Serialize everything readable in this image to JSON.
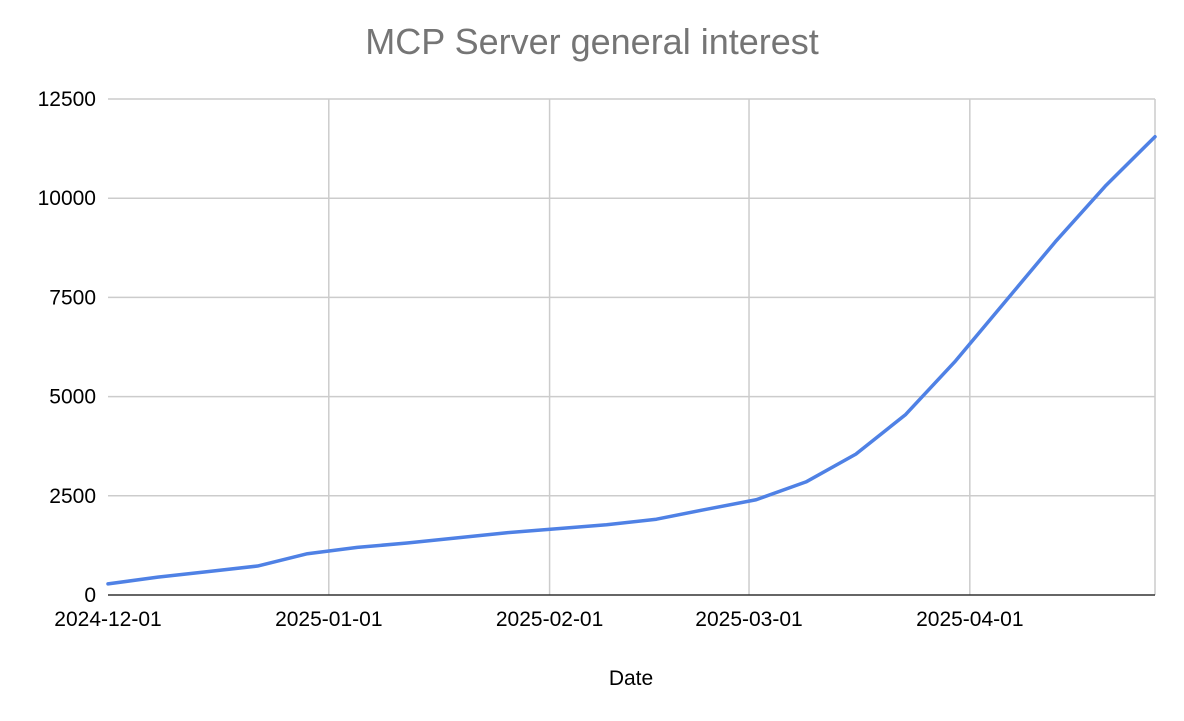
{
  "chart_data": {
    "type": "line",
    "title": "MCP Server general interest",
    "xlabel": "Date",
    "ylabel": "",
    "x_type": "date",
    "xlim": [
      "2024-12-01",
      "2025-04-27"
    ],
    "ylim": [
      0,
      12500
    ],
    "x_ticks": [
      "2024-12-01",
      "2025-01-01",
      "2025-02-01",
      "2025-03-01",
      "2025-04-01"
    ],
    "y_ticks": [
      0,
      2500,
      5000,
      7500,
      10000,
      12500
    ],
    "grid": true,
    "legend": "none",
    "series": [
      {
        "color": "#4f81e5",
        "points": [
          {
            "x": "2024-12-01",
            "y": 280
          },
          {
            "x": "2024-12-08",
            "y": 450
          },
          {
            "x": "2024-12-15",
            "y": 590
          },
          {
            "x": "2024-12-22",
            "y": 730
          },
          {
            "x": "2024-12-29",
            "y": 1040
          },
          {
            "x": "2025-01-05",
            "y": 1200
          },
          {
            "x": "2025-01-12",
            "y": 1310
          },
          {
            "x": "2025-01-19",
            "y": 1440
          },
          {
            "x": "2025-01-26",
            "y": 1570
          },
          {
            "x": "2025-02-02",
            "y": 1670
          },
          {
            "x": "2025-02-09",
            "y": 1770
          },
          {
            "x": "2025-02-16",
            "y": 1910
          },
          {
            "x": "2025-02-23",
            "y": 2160
          },
          {
            "x": "2025-03-02",
            "y": 2400
          },
          {
            "x": "2025-03-09",
            "y": 2850
          },
          {
            "x": "2025-03-16",
            "y": 3550
          },
          {
            "x": "2025-03-23",
            "y": 4550
          },
          {
            "x": "2025-03-30",
            "y": 5900
          },
          {
            "x": "2025-04-06",
            "y": 7400
          },
          {
            "x": "2025-04-13",
            "y": 8900
          },
          {
            "x": "2025-04-20",
            "y": 10300
          },
          {
            "x": "2025-04-27",
            "y": 11550
          }
        ]
      }
    ]
  }
}
